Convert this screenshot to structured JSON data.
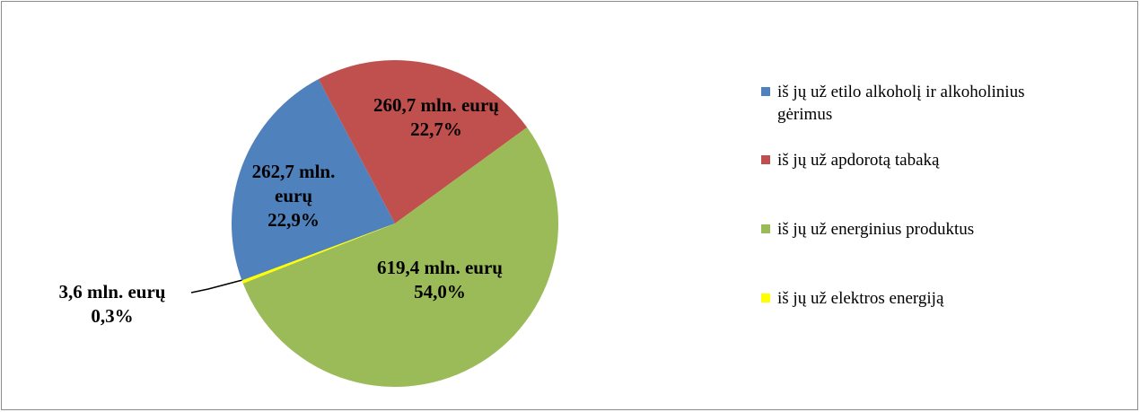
{
  "chart_data": {
    "type": "pie",
    "categories": [
      "iš jų už etilo alkoholį ir alkoholinius gėrimus",
      "iš jų už apdorotą tabaką",
      "iš jų už energinius produktus",
      "iš jų už elektros energiją"
    ],
    "values": [
      262.7,
      260.7,
      619.4,
      3.6
    ],
    "value_labels": [
      "262,7 mln. eurų",
      "260,7 mln. eurų",
      "619,4 mln. eurų",
      "3,6 mln. eurų"
    ],
    "percent_labels": [
      "22,9%",
      "22,7%",
      "54,0%",
      "0,3%"
    ],
    "colors": [
      "#4f81bd",
      "#c0504d",
      "#9bbb59",
      "#ffff00"
    ],
    "legend": "right"
  }
}
